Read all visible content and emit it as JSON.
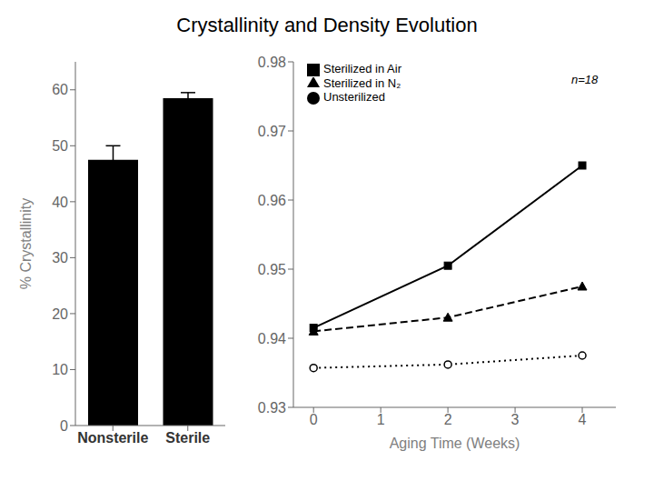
{
  "chart_data": [
    {
      "type": "bar",
      "title": "Crystallinity and Density Evolution",
      "categories": [
        "Nonsterile",
        "Sterile"
      ],
      "values": [
        47.5,
        58.5
      ],
      "errors": [
        2.5,
        1.0
      ],
      "color": "#000000",
      "ylabel": "% Crystallinity",
      "ylim": [
        0,
        65
      ],
      "yticks": [
        0,
        10,
        20,
        30,
        40,
        50,
        60
      ],
      "grid": false
    },
    {
      "type": "line",
      "xlabel": "Aging Time (Weeks)",
      "x": [
        0,
        2,
        4
      ],
      "series": [
        {
          "name": "Unsterilized",
          "color": "#000000",
          "marker": "circle",
          "line_style": "dotted",
          "values": [
            0.9357,
            0.9362,
            0.9375
          ]
        },
        {
          "name": "Sterilized in N₂",
          "color": "#000000",
          "marker": "triangle",
          "line_style": "dashed",
          "values": [
            0.941,
            0.943,
            0.9475
          ]
        },
        {
          "name": "Sterilized in Air",
          "color": "#000000",
          "marker": "square",
          "line_style": "solid",
          "values": [
            0.9415,
            0.9505,
            0.965
          ]
        }
      ],
      "xlim": [
        -0.3,
        4.5
      ],
      "xticks": [
        0,
        1,
        2,
        3,
        4
      ],
      "ylim": [
        0.93,
        0.98
      ],
      "yticks": [
        0.93,
        0.94,
        0.95,
        0.96,
        0.97,
        0.98
      ],
      "legend": "upper left",
      "grid": false,
      "annotations": [
        {
          "text": "n=18",
          "x": 4.3,
          "y": 0.9775
        }
      ]
    }
  ]
}
